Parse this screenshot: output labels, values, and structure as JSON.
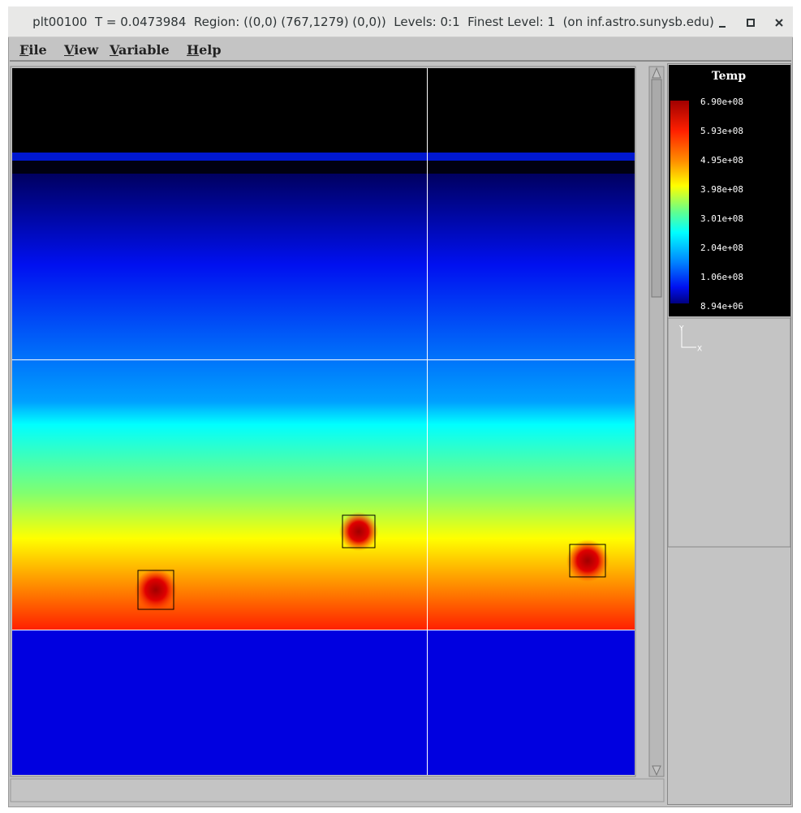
{
  "window": {
    "title": "plt00100  T = 0.0473984  Region: ((0,0) (767,1279) (0,0))  Levels: 0:1  Finest Level: 1  (on inf.astro.sunysb.edu)"
  },
  "menu": [
    "File",
    "View",
    "Variable",
    "Help"
  ],
  "palette": {
    "title": "Temp",
    "labels": [
      "6.90e+08",
      "5.93e+08",
      "4.95e+08",
      "3.98e+08",
      "3.01e+08",
      "2.04e+08",
      "1.06e+08",
      "8.94e+06"
    ]
  },
  "axes": {
    "y": "Y",
    "x": "X"
  }
}
